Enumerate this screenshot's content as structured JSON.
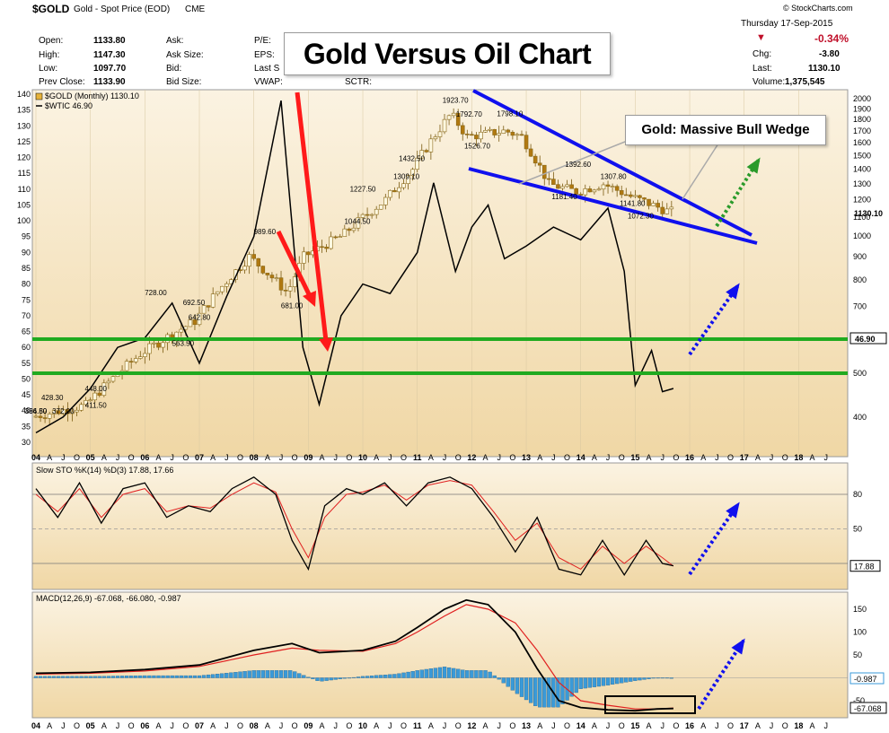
{
  "header": {
    "symbol": "$GOLD",
    "desc": "Gold - Spot Price (EOD)",
    "exchange": "CME",
    "date": "Thursday   17-Sep-2015",
    "credit": "© StockCharts.com",
    "col1": [
      {
        "label": "Open:",
        "value": "1133.80"
      },
      {
        "label": "High:",
        "value": "1147.30"
      },
      {
        "label": "Low:",
        "value": "1097.70"
      },
      {
        "label": "Prev Close:",
        "value": "1133.90"
      }
    ],
    "col2": [
      "Ask:",
      "Ask Size:",
      "Bid:",
      "Bid Size:"
    ],
    "col3": [
      "P/E:",
      "EPS:",
      "Last S",
      "VWAP:"
    ],
    "sctr": "SCTR:",
    "change_pct": "-0.34%",
    "right": [
      {
        "label": "Chg:",
        "value": "-3.80"
      },
      {
        "label": "Last:",
        "value": "1130.10"
      },
      {
        "label": "Volume:",
        "value": "1,375,545"
      }
    ]
  },
  "annotations": {
    "title": "Gold Versus Oil Chart",
    "wedge": "Gold:  Massive Bull Wedge"
  },
  "colors": {
    "gold_up": "#e6b23a",
    "gold_down": "#b07810",
    "red": "#ff1a1a",
    "blue": "#1010ee",
    "green": "#20aa20",
    "panel_bg_top": "#fbf3e2",
    "panel_bg_bottom": "#f0d7a5"
  },
  "chart_data": [
    {
      "type": "line",
      "legend": [
        "$GOLD (Monthly) 1130.10",
        "$WTIC 46.90"
      ],
      "left_axis": [
        30,
        35,
        40,
        45,
        50,
        55,
        60,
        65,
        70,
        75,
        80,
        85,
        90,
        95,
        100,
        105,
        110,
        115,
        120,
        125,
        130,
        135,
        140
      ],
      "right_axis": [
        400,
        500,
        600,
        700,
        800,
        900,
        1000,
        1100,
        1200,
        1300,
        1400,
        1500,
        1600,
        1700,
        1800,
        1900,
        2000
      ],
      "last_tags": [
        "1130.10",
        "46.90"
      ],
      "x_labels": [
        "04",
        "A",
        "J",
        "O",
        "05",
        "A",
        "J",
        "O",
        "06",
        "A",
        "J",
        "O",
        "07",
        "A",
        "J",
        "O",
        "08",
        "A",
        "J",
        "O",
        "09",
        "A",
        "J",
        "O",
        "10",
        "A",
        "J",
        "O",
        "11",
        "A",
        "J",
        "O",
        "12",
        "A",
        "J",
        "O",
        "13",
        "A",
        "J",
        "O",
        "14",
        "A",
        "J",
        "O",
        "15",
        "A",
        "J",
        "O",
        "16",
        "A",
        "J",
        "O",
        "17",
        "A",
        "J",
        "O",
        "18",
        "A",
        "J"
      ],
      "gold_labels": [
        "1923.70",
        "1792.70",
        "1798.10",
        "1526.70",
        "1432.50",
        "1309.10",
        "1227.50",
        "1044.50",
        "989.60",
        "681.00",
        "728.00",
        "692.50",
        "642.80",
        "563.50",
        "448.00",
        "411.50",
        "428.30",
        "394.80",
        "372.00",
        "366.50",
        "1392.60",
        "1181.40",
        "1307.80",
        "1141.80",
        "1072.30"
      ],
      "series": [
        {
          "name": "$GOLD",
          "x": [
            2004.0,
            2005.0,
            2006.0,
            2007.0,
            2008.0,
            2008.7,
            2009.0,
            2009.7,
            2010.5,
            2011.0,
            2011.7,
            2012.0,
            2012.7,
            2013.0,
            2013.5,
            2014.0,
            2014.5,
            2015.0,
            2015.7
          ],
          "values": [
            400,
            425,
            550,
            650,
            900,
            750,
            900,
            1000,
            1200,
            1400,
            1850,
            1650,
            1700,
            1650,
            1300,
            1250,
            1300,
            1220,
            1130
          ]
        },
        {
          "name": "$WTIC",
          "x": [
            2004.0,
            2004.5,
            2005.0,
            2005.5,
            2006.0,
            2006.5,
            2007.0,
            2007.5,
            2008.0,
            2008.5,
            2008.9,
            2009.2,
            2009.6,
            2010.0,
            2010.5,
            2011.0,
            2011.3,
            2011.7,
            2012.0,
            2012.3,
            2012.6,
            2013.0,
            2013.5,
            2014.0,
            2014.5,
            2014.8,
            2015.0,
            2015.3,
            2015.5,
            2015.7
          ],
          "values": [
            33,
            38,
            47,
            60,
            63,
            74,
            55,
            76,
            95,
            138,
            60,
            42,
            70,
            80,
            77,
            90,
            112,
            84,
            98,
            105,
            88,
            92,
            98,
            94,
            104,
            84,
            48,
            59,
            46,
            47
          ]
        }
      ]
    },
    {
      "type": "line",
      "legend": "Slow STO %K(14) %D(3) 17.88, 17.66",
      "axis": [
        "80",
        "50",
        "20"
      ],
      "last_tag": "17.88",
      "x": [
        2004.0,
        2004.4,
        2004.8,
        2005.2,
        2005.6,
        2006.0,
        2006.4,
        2006.8,
        2007.2,
        2007.6,
        2008.0,
        2008.4,
        2008.7,
        2009.0,
        2009.3,
        2009.7,
        2010.0,
        2010.4,
        2010.8,
        2011.2,
        2011.6,
        2012.0,
        2012.4,
        2012.8,
        2013.2,
        2013.6,
        2014.0,
        2014.4,
        2014.8,
        2015.2,
        2015.5,
        2015.7
      ],
      "series": [
        {
          "name": "%K",
          "values": [
            85,
            60,
            90,
            55,
            85,
            90,
            60,
            70,
            65,
            85,
            95,
            80,
            40,
            15,
            70,
            85,
            80,
            90,
            70,
            90,
            95,
            85,
            60,
            30,
            60,
            15,
            10,
            40,
            10,
            40,
            20,
            18
          ]
        },
        {
          "name": "%D",
          "values": [
            80,
            65,
            85,
            60,
            80,
            85,
            65,
            70,
            68,
            80,
            90,
            82,
            50,
            25,
            60,
            80,
            82,
            88,
            75,
            88,
            92,
            88,
            65,
            40,
            55,
            25,
            15,
            35,
            20,
            35,
            25,
            17.7
          ]
        }
      ]
    },
    {
      "type": "line",
      "legend": "MACD(12,26,9) -67.068, -66.080, -0.987",
      "axis": [
        "150",
        "100",
        "50",
        "-50"
      ],
      "last_tags": [
        "-0.987",
        "-67.068"
      ],
      "x": [
        2004.0,
        2005.0,
        2006.0,
        2007.0,
        2008.0,
        2008.7,
        2009.2,
        2010.0,
        2010.6,
        2011.0,
        2011.5,
        2011.9,
        2012.3,
        2012.8,
        2013.2,
        2013.6,
        2014.0,
        2014.5,
        2015.0,
        2015.4,
        2015.7
      ],
      "series": [
        {
          "name": "MACD",
          "values": [
            10,
            12,
            18,
            28,
            60,
            75,
            55,
            60,
            80,
            110,
            150,
            170,
            160,
            100,
            20,
            -50,
            -65,
            -70,
            -72,
            -68,
            -67
          ]
        },
        {
          "name": "Signal",
          "values": [
            8,
            10,
            15,
            25,
            50,
            65,
            60,
            58,
            75,
            100,
            135,
            160,
            150,
            120,
            60,
            -10,
            -50,
            -60,
            -68,
            -68,
            -66
          ]
        }
      ]
    }
  ]
}
